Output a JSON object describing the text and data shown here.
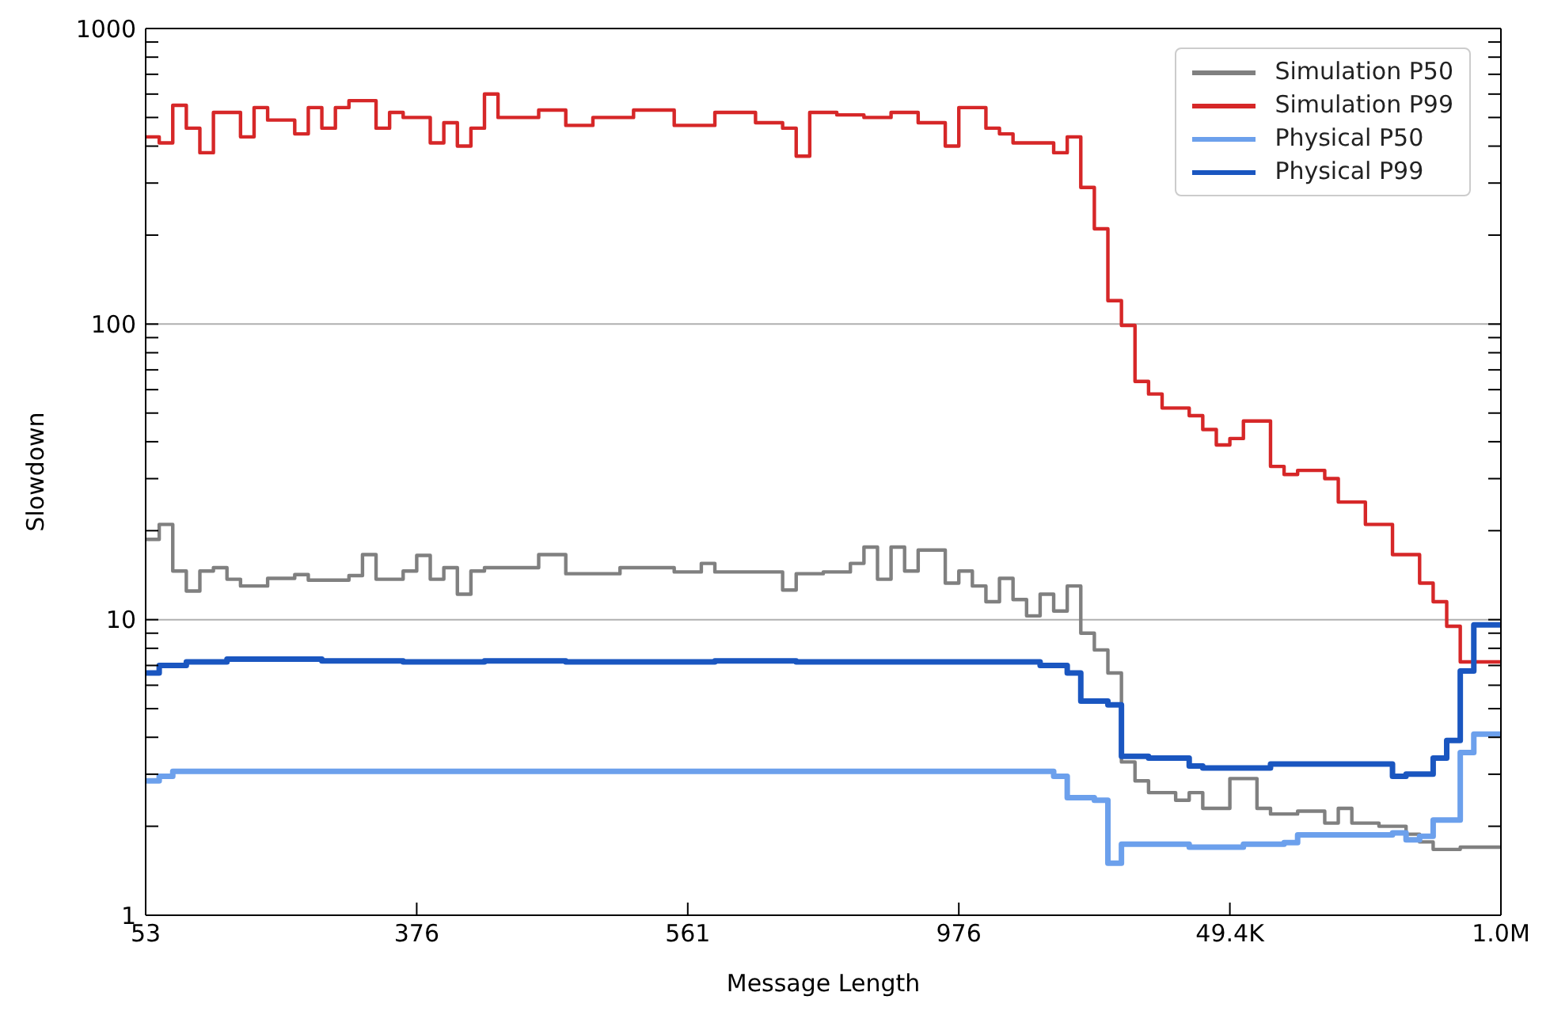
{
  "chart_data": {
    "type": "step",
    "xlabel": "Message Length",
    "ylabel": "Slowdown",
    "log": "y",
    "grid": "y",
    "legend": "top right",
    "marker": "none",
    "line_style": "solid",
    "categories": [
      "53",
      null,
      null,
      null,
      null,
      null,
      null,
      null,
      null,
      null,
      null,
      null,
      null,
      null,
      null,
      null,
      null,
      null,
      null,
      null,
      "376",
      null,
      null,
      null,
      null,
      null,
      null,
      null,
      null,
      null,
      null,
      null,
      null,
      null,
      null,
      null,
      null,
      null,
      null,
      null,
      "561",
      null,
      null,
      null,
      null,
      null,
      null,
      null,
      null,
      null,
      null,
      null,
      null,
      null,
      null,
      null,
      null,
      null,
      null,
      null,
      "976",
      null,
      null,
      null,
      null,
      null,
      null,
      null,
      null,
      null,
      null,
      null,
      null,
      null,
      null,
      null,
      null,
      null,
      null,
      null,
      "49.4K",
      null,
      null,
      null,
      null,
      null,
      null,
      null,
      null,
      null,
      null,
      null,
      null,
      null,
      null,
      null,
      null,
      null,
      null,
      null,
      "1.0M"
    ],
    "ylim": [
      1,
      1000
    ],
    "yticks": [
      1,
      {
        "value": 2,
        "label": null
      },
      {
        "value": 3,
        "label": null
      },
      {
        "value": 4,
        "label": null
      },
      {
        "value": 5,
        "label": null
      },
      {
        "value": 6,
        "label": null
      },
      {
        "value": 7,
        "label": null
      },
      {
        "value": 8,
        "label": null
      },
      {
        "value": 9,
        "label": null
      },
      10,
      {
        "value": 20,
        "label": null
      },
      {
        "value": 30,
        "label": null
      },
      {
        "value": 40,
        "label": null
      },
      {
        "value": 50,
        "label": null
      },
      {
        "value": 60,
        "label": null
      },
      {
        "value": 70,
        "label": null
      },
      {
        "value": 80,
        "label": null
      },
      {
        "value": 90,
        "label": null
      },
      100,
      {
        "value": 200,
        "label": null
      },
      {
        "value": 300,
        "label": null
      },
      {
        "value": 400,
        "label": null
      },
      {
        "value": 500,
        "label": null
      },
      {
        "value": 600,
        "label": null
      },
      {
        "value": 700,
        "label": null
      },
      {
        "value": 800,
        "label": null
      },
      {
        "value": 900,
        "label": null
      },
      1000
    ],
    "series": [
      {
        "name": "Simulation P50",
        "color": "#808080",
        "values": [
          18.7,
          21,
          14.6,
          12.5,
          14.6,
          15,
          13.7,
          13,
          13,
          13.8,
          13.8,
          14.2,
          13.6,
          13.6,
          13.6,
          14.1,
          16.6,
          13.7,
          13.7,
          14.6,
          16.5,
          13.7,
          15,
          12.2,
          14.6,
          15,
          15,
          15,
          15,
          16.6,
          16.6,
          14.3,
          14.3,
          14.3,
          14.3,
          15,
          15,
          15,
          15,
          14.5,
          14.5,
          15.5,
          14.5,
          14.5,
          14.5,
          14.5,
          14.5,
          12.6,
          14.3,
          14.3,
          14.5,
          14.5,
          15.5,
          17.6,
          13.7,
          17.6,
          14.6,
          17.2,
          17.2,
          13.3,
          14.6,
          13,
          11.5,
          13.8,
          11.7,
          10.3,
          12.2,
          10.7,
          13,
          9,
          7.9,
          6.6,
          3.3,
          2.85,
          2.6,
          2.6,
          2.45,
          2.6,
          2.3,
          2.3,
          2.9,
          2.9,
          2.3,
          2.2,
          2.2,
          2.25,
          2.25,
          2.05,
          2.3,
          2.05,
          2.05,
          2.0,
          2.0,
          1.88,
          1.77,
          1.67,
          1.67,
          1.7,
          1.7,
          1.7,
          1.7
        ]
      },
      {
        "name": "Simulation P99",
        "color": "#d62728",
        "values": [
          430,
          410,
          550,
          460,
          380,
          520,
          520,
          430,
          540,
          490,
          490,
          440,
          540,
          460,
          540,
          570,
          570,
          460,
          520,
          500,
          500,
          410,
          480,
          400,
          460,
          600,
          500,
          500,
          500,
          530,
          530,
          470,
          470,
          500,
          500,
          500,
          530,
          530,
          530,
          470,
          470,
          470,
          520,
          520,
          520,
          480,
          480,
          460,
          370,
          520,
          520,
          510,
          510,
          500,
          500,
          520,
          520,
          480,
          480,
          400,
          540,
          540,
          460,
          440,
          410,
          410,
          410,
          380,
          430,
          290,
          210,
          120,
          99,
          64,
          58,
          52,
          52,
          49,
          44,
          39,
          41,
          47,
          47,
          33,
          31,
          32,
          32,
          30,
          25,
          25,
          21,
          21,
          16.6,
          16.6,
          13.3,
          11.5,
          9.5,
          7.2,
          7.2,
          7.2,
          7.2
        ]
      },
      {
        "name": "Physical P50",
        "color": "#6ca0ec",
        "values": [
          2.85,
          2.95,
          3.07,
          3.07,
          3.07,
          3.07,
          3.07,
          3.07,
          3.07,
          3.07,
          3.07,
          3.07,
          3.07,
          3.07,
          3.07,
          3.07,
          3.07,
          3.07,
          3.07,
          3.07,
          3.07,
          3.07,
          3.07,
          3.07,
          3.07,
          3.07,
          3.07,
          3.07,
          3.07,
          3.07,
          3.07,
          3.07,
          3.07,
          3.07,
          3.07,
          3.07,
          3.07,
          3.07,
          3.07,
          3.07,
          3.07,
          3.07,
          3.07,
          3.07,
          3.07,
          3.07,
          3.07,
          3.07,
          3.07,
          3.07,
          3.07,
          3.07,
          3.07,
          3.07,
          3.07,
          3.07,
          3.07,
          3.07,
          3.07,
          3.07,
          3.07,
          3.07,
          3.07,
          3.07,
          3.07,
          3.07,
          3.07,
          2.95,
          2.5,
          2.5,
          2.45,
          1.5,
          1.74,
          1.74,
          1.74,
          1.74,
          1.74,
          1.7,
          1.7,
          1.7,
          1.7,
          1.74,
          1.74,
          1.74,
          1.76,
          1.87,
          1.87,
          1.87,
          1.87,
          1.87,
          1.87,
          1.87,
          1.9,
          1.8,
          1.85,
          2.1,
          2.1,
          3.55,
          4.1,
          4.1,
          4.1
        ]
      },
      {
        "name": "Physical P99",
        "color": "#1a56c0",
        "values": [
          6.6,
          7.0,
          7.0,
          7.2,
          7.2,
          7.2,
          7.35,
          7.35,
          7.35,
          7.35,
          7.35,
          7.35,
          7.35,
          7.25,
          7.25,
          7.25,
          7.25,
          7.25,
          7.25,
          7.2,
          7.2,
          7.2,
          7.2,
          7.2,
          7.2,
          7.25,
          7.25,
          7.25,
          7.25,
          7.25,
          7.25,
          7.2,
          7.2,
          7.2,
          7.2,
          7.2,
          7.2,
          7.2,
          7.2,
          7.2,
          7.2,
          7.2,
          7.25,
          7.25,
          7.25,
          7.25,
          7.25,
          7.25,
          7.2,
          7.2,
          7.2,
          7.2,
          7.2,
          7.2,
          7.2,
          7.2,
          7.2,
          7.2,
          7.2,
          7.2,
          7.2,
          7.2,
          7.2,
          7.2,
          7.2,
          7.2,
          7.0,
          7.0,
          6.6,
          5.3,
          5.3,
          5.15,
          3.45,
          3.45,
          3.4,
          3.4,
          3.4,
          3.2,
          3.15,
          3.15,
          3.15,
          3.15,
          3.15,
          3.25,
          3.25,
          3.25,
          3.25,
          3.25,
          3.25,
          3.25,
          3.25,
          3.25,
          2.95,
          3.0,
          3.0,
          3.4,
          3.9,
          6.7,
          9.6,
          9.6,
          9.6
        ]
      }
    ]
  }
}
